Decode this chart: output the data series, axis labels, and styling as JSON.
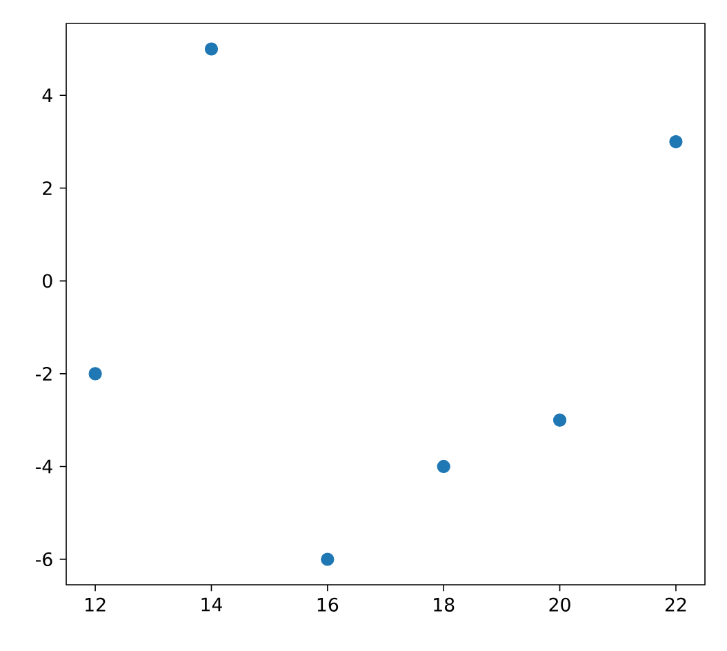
{
  "chart_data": {
    "type": "scatter",
    "x": [
      12,
      14,
      16,
      18,
      20,
      22
    ],
    "values": [
      -2,
      5,
      -6,
      -4,
      -3,
      3
    ],
    "color": "#1f77b4",
    "xlim": [
      11.5,
      22.5
    ],
    "ylim": [
      -6.55,
      5.55
    ],
    "xticks": [
      12,
      14,
      16,
      18,
      20,
      22
    ],
    "yticks": [
      -6,
      -4,
      -2,
      0,
      2,
      4
    ]
  }
}
